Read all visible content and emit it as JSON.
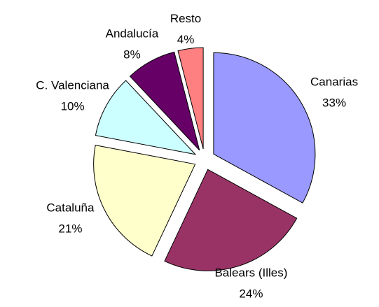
{
  "chart_data": {
    "type": "pie",
    "categories": [
      "Canarias",
      "Balears (Illes)",
      "Cataluña",
      "C. Valenciana",
      "Andalucía",
      "Resto"
    ],
    "values": [
      33,
      24,
      21,
      10,
      8,
      4
    ],
    "value_labels": [
      "33%",
      "24%",
      "21%",
      "10%",
      "8%",
      "4%"
    ],
    "colors": [
      "#9999ff",
      "#993366",
      "#ffffcc",
      "#ccffff",
      "#660066",
      "#ff8080"
    ]
  }
}
